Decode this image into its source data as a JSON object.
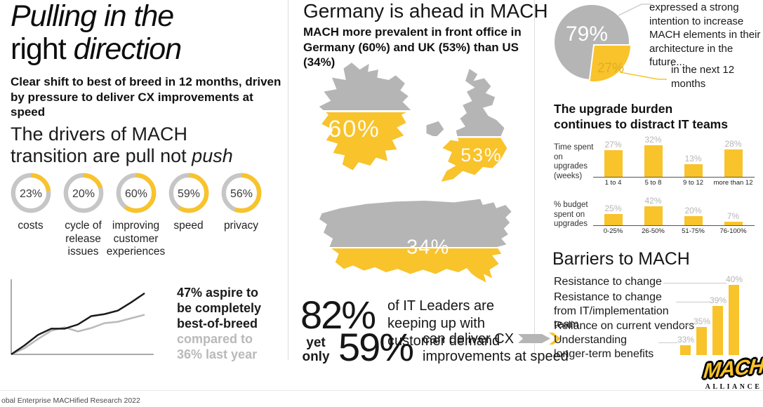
{
  "colors": {
    "accent_yellow": "#f8c32b",
    "shape_gray": "#b5b5b5",
    "muted_label_gray": "#b5b5b5"
  },
  "chart_data": [
    {
      "type": "donut",
      "title": "The drivers of MACH transition are pull not push",
      "items": [
        {
          "label": "costs",
          "value": 23,
          "pct": "23%"
        },
        {
          "label": "cycle of release issues",
          "value": 20,
          "pct": "20%"
        },
        {
          "label": "improving customer experiences",
          "value": 60,
          "pct": "60%"
        },
        {
          "label": "speed",
          "value": 59,
          "pct": "59%"
        },
        {
          "label": "privacy",
          "value": 56,
          "pct": "56%"
        }
      ]
    },
    {
      "type": "line",
      "annotation": "47% aspire to be completely best-of-breed compared to 36% last year",
      "legend_position": "right",
      "grid": false,
      "series": [
        {
          "name": "aspire to be completely best-of-breed (47%)",
          "color": "#1a1a1a",
          "values": [
            0,
            13,
            28,
            37,
            37,
            43,
            55,
            58,
            63,
            75,
            88
          ]
        },
        {
          "name": "last year (36%)",
          "color": "#b9b9b9",
          "values": [
            0,
            9,
            22,
            34,
            39,
            33,
            38,
            45,
            47,
            52,
            57
          ]
        }
      ]
    },
    {
      "type": "map-fill",
      "title": "MACH more prevalent in front office in Germany (60%) and UK (53%) than US (34%)",
      "items": [
        {
          "country": "Germany",
          "value": 60,
          "pct": "60%"
        },
        {
          "country": "UK",
          "value": 53,
          "pct": "53%"
        },
        {
          "country": "US",
          "value": 34,
          "pct": "34%"
        }
      ]
    },
    {
      "type": "pie",
      "items": [
        {
          "label": "expressed a strong intention to increase MACH elements in their architecture in the future...",
          "value": 79,
          "pct": "79%",
          "color": "#b5b5b5"
        },
        {
          "label": "in the next 12 months",
          "value": 27,
          "pct": "27%",
          "color": "#f8c32b"
        }
      ]
    },
    {
      "type": "bar",
      "title": "Time spent on upgrades (weeks)",
      "items": [
        {
          "tick": "1 to 4",
          "value": 27,
          "pct": "27%"
        },
        {
          "tick": "5 to 8",
          "value": 32,
          "pct": "32%"
        },
        {
          "tick": "9 to 12",
          "value": 13,
          "pct": "13%"
        },
        {
          "tick": "more than 12",
          "value": 28,
          "pct": "28%"
        }
      ]
    },
    {
      "type": "bar",
      "title": "% budget spent on upgrades",
      "items": [
        {
          "tick": "0-25%",
          "value": 25,
          "pct": "25%"
        },
        {
          "tick": "26-50%",
          "value": 42,
          "pct": "42%"
        },
        {
          "tick": "51-75%",
          "value": 20,
          "pct": "20%"
        },
        {
          "tick": "76-100%",
          "value": 7,
          "pct": "7%"
        }
      ]
    },
    {
      "type": "bar",
      "title": "Barriers to MACH",
      "items": [
        {
          "label": "Understanding longer-term benefits",
          "value": 33,
          "pct": "33%"
        },
        {
          "label": "Reliance on current vendors",
          "value": 35,
          "pct": "35%"
        },
        {
          "label": "Resistance to change from IT/implementation team",
          "value": 39,
          "pct": "39%"
        },
        {
          "label": "Resistance to change",
          "value": 40,
          "pct": "40%"
        }
      ]
    }
  ],
  "left": {
    "title_italic_1": "Pulling in the",
    "title_roman": "right",
    "title_italic_2": "direction",
    "subtitle": "Clear shift to best of breed in 12 months, driven by pressure to deliver CX improvements at speed",
    "drivers_line1": "The drivers of MACH",
    "drivers_line2": "transition are pull not",
    "drivers_line2_italic": "push",
    "aspire_bold": "47% aspire to be completely best-of-breed",
    "aspire_gray": "compared to 36% last year"
  },
  "middle": {
    "heading": "Germany is ahead in MACH",
    "subheading": "MACH more prevalent in front office in Germany (60%) and UK (53%) than US (34%)",
    "stat1_value": "82%",
    "stat1_text": "of IT Leaders are keeping up with customer demand",
    "yet": "yet",
    "only": "only",
    "stat2_value": "59%",
    "stat2_text1": "can deliver CX",
    "stat2_text2": "improvements at speed"
  },
  "right": {
    "pie_note1": "expressed a strong intention to increase MACH elements in their architecture in the future...",
    "pie_note2": "in the next 12 months",
    "upgrade_heading": "The upgrade burden continues to distract IT teams",
    "chart1_label": "Time spent on upgrades (weeks)",
    "chart2_label": "% budget spent on upgrades",
    "barriers_heading": "Barriers to MACH"
  },
  "footer": {
    "source": "obal Enterprise MACHified Research 2022",
    "logo_text": "MACH",
    "logo_subtext": "ALLIANCE"
  }
}
